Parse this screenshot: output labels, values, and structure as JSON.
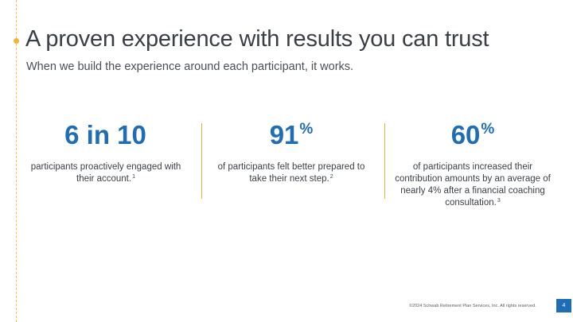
{
  "slide": {
    "title": "A proven experience with results you can trust",
    "subtitle": "When we build the experience around each participant, it works."
  },
  "stats": [
    {
      "value": "6 in 10",
      "value_suffix": "",
      "description": "participants proactively engaged with their account.",
      "footnote": "1"
    },
    {
      "value": "91",
      "value_suffix": "%",
      "description": "of participants felt better prepared to take their next step.",
      "footnote": "2"
    },
    {
      "value": "60",
      "value_suffix": "%",
      "description": "of participants increased their contribution amounts by an average of nearly 4% after a financial coaching consultation.",
      "footnote": "3"
    }
  ],
  "footer": {
    "copyright": "©2024 Schwab Retirement Plan Services, Inc. All rights reserved.",
    "page_number": "4"
  },
  "colors": {
    "accent_blue": "#1f6db5",
    "accent_gold": "#e3b13a",
    "text_dark": "#3a3f45"
  }
}
